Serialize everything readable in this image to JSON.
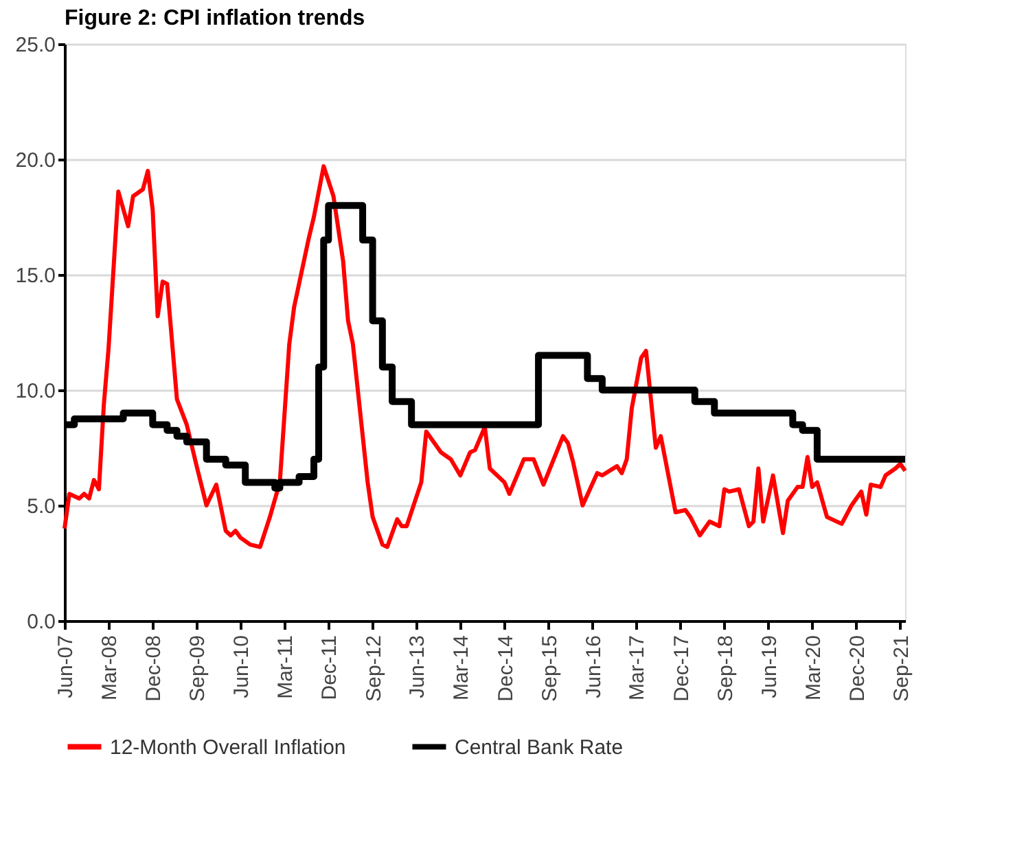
{
  "chart_data": {
    "type": "line",
    "title": "Figure 2: CPI inflation trends",
    "ylim": [
      0,
      25
    ],
    "yticks": [
      {
        "value": 0,
        "label": "0.0"
      },
      {
        "value": 5,
        "label": "5.0"
      },
      {
        "value": 10,
        "label": "10.0"
      },
      {
        "value": 15,
        "label": "15.0"
      },
      {
        "value": 20,
        "label": "20.0"
      },
      {
        "value": 25,
        "label": "25.0"
      }
    ],
    "xlim": [
      "2007-06",
      "2021-10"
    ],
    "xticks": [
      {
        "value": "2007-06",
        "label": "Jun-07"
      },
      {
        "value": "2008-03",
        "label": "Mar-08"
      },
      {
        "value": "2008-12",
        "label": "Dec-08"
      },
      {
        "value": "2009-09",
        "label": "Sep-09"
      },
      {
        "value": "2010-06",
        "label": "Jun-10"
      },
      {
        "value": "2011-03",
        "label": "Mar-11"
      },
      {
        "value": "2011-12",
        "label": "Dec-11"
      },
      {
        "value": "2012-09",
        "label": "Sep-12"
      },
      {
        "value": "2013-06",
        "label": "Jun-13"
      },
      {
        "value": "2014-03",
        "label": "Mar-14"
      },
      {
        "value": "2014-12",
        "label": "Dec-14"
      },
      {
        "value": "2015-09",
        "label": "Sep-15"
      },
      {
        "value": "2016-06",
        "label": "Jun-16"
      },
      {
        "value": "2017-03",
        "label": "Mar-17"
      },
      {
        "value": "2017-12",
        "label": "Dec-17"
      },
      {
        "value": "2018-09",
        "label": "Sep-18"
      },
      {
        "value": "2019-06",
        "label": "Jun-19"
      },
      {
        "value": "2020-03",
        "label": "Mar-20"
      },
      {
        "value": "2020-12",
        "label": "Dec-20"
      },
      {
        "value": "2021-09",
        "label": "Sep-21"
      }
    ],
    "grid": "y",
    "legend": "bottom",
    "series": [
      {
        "name": "12-Month Overall Inflation",
        "color": "#ff0000",
        "type": "line",
        "x": [
          "2007-06",
          "2007-07",
          "2007-09",
          "2007-10",
          "2007-11",
          "2007-12",
          "2008-01",
          "2008-02",
          "2008-03",
          "2008-05",
          "2008-07",
          "2008-08",
          "2008-10",
          "2008-11",
          "2008-12",
          "2009-01",
          "2009-02",
          "2009-03",
          "2009-05",
          "2009-07",
          "2009-09",
          "2009-11",
          "2010-01",
          "2010-03",
          "2010-04",
          "2010-05",
          "2010-06",
          "2010-08",
          "2010-10",
          "2010-12",
          "2011-02",
          "2011-04",
          "2011-05",
          "2011-08",
          "2011-09",
          "2011-11",
          "2012-01",
          "2012-03",
          "2012-04",
          "2012-05",
          "2012-08",
          "2012-09",
          "2012-11",
          "2012-12",
          "2013-02",
          "2013-03",
          "2013-04",
          "2013-07",
          "2013-08",
          "2013-11",
          "2014-01",
          "2014-03",
          "2014-05",
          "2014-06",
          "2014-08",
          "2014-09",
          "2014-12",
          "2015-01",
          "2015-04",
          "2015-06",
          "2015-08",
          "2015-12",
          "2016-01",
          "2016-02",
          "2016-04",
          "2016-07",
          "2016-08",
          "2016-11",
          "2016-12",
          "2017-01",
          "2017-02",
          "2017-04",
          "2017-05",
          "2017-07",
          "2017-08",
          "2017-11",
          "2018-01",
          "2018-02",
          "2018-04",
          "2018-06",
          "2018-08",
          "2018-09",
          "2018-10",
          "2018-12",
          "2019-02",
          "2019-03",
          "2019-04",
          "2019-05",
          "2019-07",
          "2019-09",
          "2019-10",
          "2019-12",
          "2020-01",
          "2020-02",
          "2020-03",
          "2020-04",
          "2020-06",
          "2020-07",
          "2020-09",
          "2020-11",
          "2021-01",
          "2021-02",
          "2021-03",
          "2021-05",
          "2021-06",
          "2021-08",
          "2021-09",
          "2021-10"
        ],
        "values": [
          4.0,
          5.5,
          5.3,
          5.5,
          5.3,
          6.1,
          5.7,
          9.4,
          11.8,
          18.6,
          17.1,
          18.4,
          18.7,
          19.5,
          17.8,
          13.2,
          14.7,
          14.6,
          9.6,
          8.5,
          6.7,
          5.0,
          5.9,
          3.9,
          3.7,
          3.9,
          3.6,
          3.3,
          3.2,
          4.5,
          6.0,
          12.0,
          13.6,
          16.6,
          17.5,
          19.7,
          18.4,
          15.6,
          13.0,
          12.0,
          6.0,
          4.5,
          3.3,
          3.2,
          4.4,
          4.1,
          4.1,
          6.0,
          8.2,
          7.3,
          7.0,
          6.3,
          7.3,
          7.4,
          8.4,
          6.6,
          6.0,
          5.5,
          7.0,
          7.0,
          5.9,
          8.0,
          7.7,
          6.9,
          5.0,
          6.4,
          6.3,
          6.7,
          6.4,
          7.0,
          9.2,
          11.4,
          11.7,
          7.5,
          8.0,
          4.7,
          4.8,
          4.5,
          3.7,
          4.3,
          4.1,
          5.7,
          5.6,
          5.7,
          4.1,
          4.3,
          6.6,
          4.3,
          6.3,
          3.8,
          5.2,
          5.8,
          5.8,
          7.1,
          5.8,
          6.0,
          4.5,
          4.4,
          4.2,
          5.0,
          5.6,
          4.6,
          5.9,
          5.8,
          6.3,
          6.6,
          6.8,
          6.5
        ]
      },
      {
        "name": "Central Bank Rate",
        "color": "#000000",
        "type": "step",
        "x": [
          "2007-06",
          "2007-08",
          "2008-06",
          "2008-12",
          "2009-03",
          "2009-05",
          "2009-07",
          "2009-11",
          "2010-03",
          "2010-07",
          "2011-01",
          "2011-02",
          "2011-06",
          "2011-09",
          "2011-10",
          "2011-11",
          "2011-12",
          "2012-07",
          "2012-09",
          "2012-11",
          "2013-01",
          "2013-05",
          "2015-07",
          "2016-05",
          "2016-08",
          "2018-03",
          "2018-07",
          "2019-11",
          "2020-01",
          "2020-04",
          "2021-10"
        ],
        "values": [
          8.5,
          8.75,
          9.0,
          8.5,
          8.25,
          8.0,
          7.75,
          7.0,
          6.75,
          6.0,
          5.75,
          6.0,
          6.25,
          7.0,
          11.0,
          16.5,
          18.0,
          16.5,
          13.0,
          11.0,
          9.5,
          8.5,
          11.5,
          10.5,
          10.0,
          9.5,
          9.0,
          8.5,
          8.25,
          7.0,
          7.0
        ]
      }
    ]
  }
}
